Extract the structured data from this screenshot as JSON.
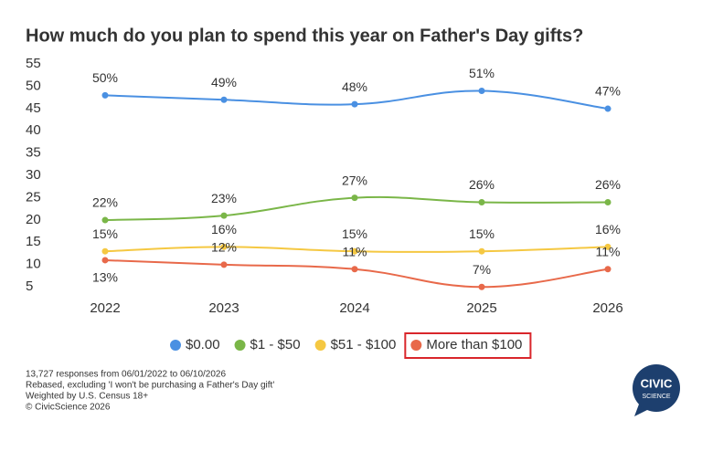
{
  "chart_data": {
    "type": "line",
    "title": "How much do you plan to spend this year on Father's Day gifts?",
    "categories": [
      "2022",
      "2023",
      "2024",
      "2025",
      "2026"
    ],
    "series": [
      {
        "name": "$0.00",
        "color": "#4a90e2",
        "values": [
          50,
          49,
          48,
          51,
          47
        ],
        "value_labels": [
          "50%",
          "49%",
          "48%",
          "51%",
          "47%"
        ]
      },
      {
        "name": "$1 - $50",
        "color": "#7ab648",
        "values": [
          22,
          23,
          27,
          26,
          26
        ],
        "value_labels": [
          "22%",
          "23%",
          "27%",
          "26%",
          "26%"
        ]
      },
      {
        "name": "$51 - $100",
        "color": "#f5c842",
        "values": [
          15,
          16,
          15,
          15,
          16
        ],
        "value_labels": [
          "15%",
          "16%",
          "15%",
          "15%",
          "16%"
        ]
      },
      {
        "name": "More than $100",
        "color": "#e8694a",
        "values": [
          13,
          12,
          11,
          7,
          11
        ],
        "value_labels": [
          "13%",
          "12%",
          "11%",
          "7%",
          "11%"
        ]
      }
    ],
    "ylim": [
      5,
      55
    ],
    "yticks": [
      5,
      10,
      15,
      20,
      25,
      30,
      35,
      40,
      45,
      50,
      55
    ],
    "grid": false,
    "legend": "bottom",
    "legend_highlight": 3
  },
  "footnotes": [
    "13,727  responses from 06/01/2022 to 06/10/2026",
    "Rebased, excluding 'I won't be purchasing a Father's Day gift'",
    "Weighted by U.S. Census 18+",
    "© CivicScience 2026"
  ],
  "logo": {
    "line1": "CIVIC",
    "line2": "SCIENCE"
  }
}
